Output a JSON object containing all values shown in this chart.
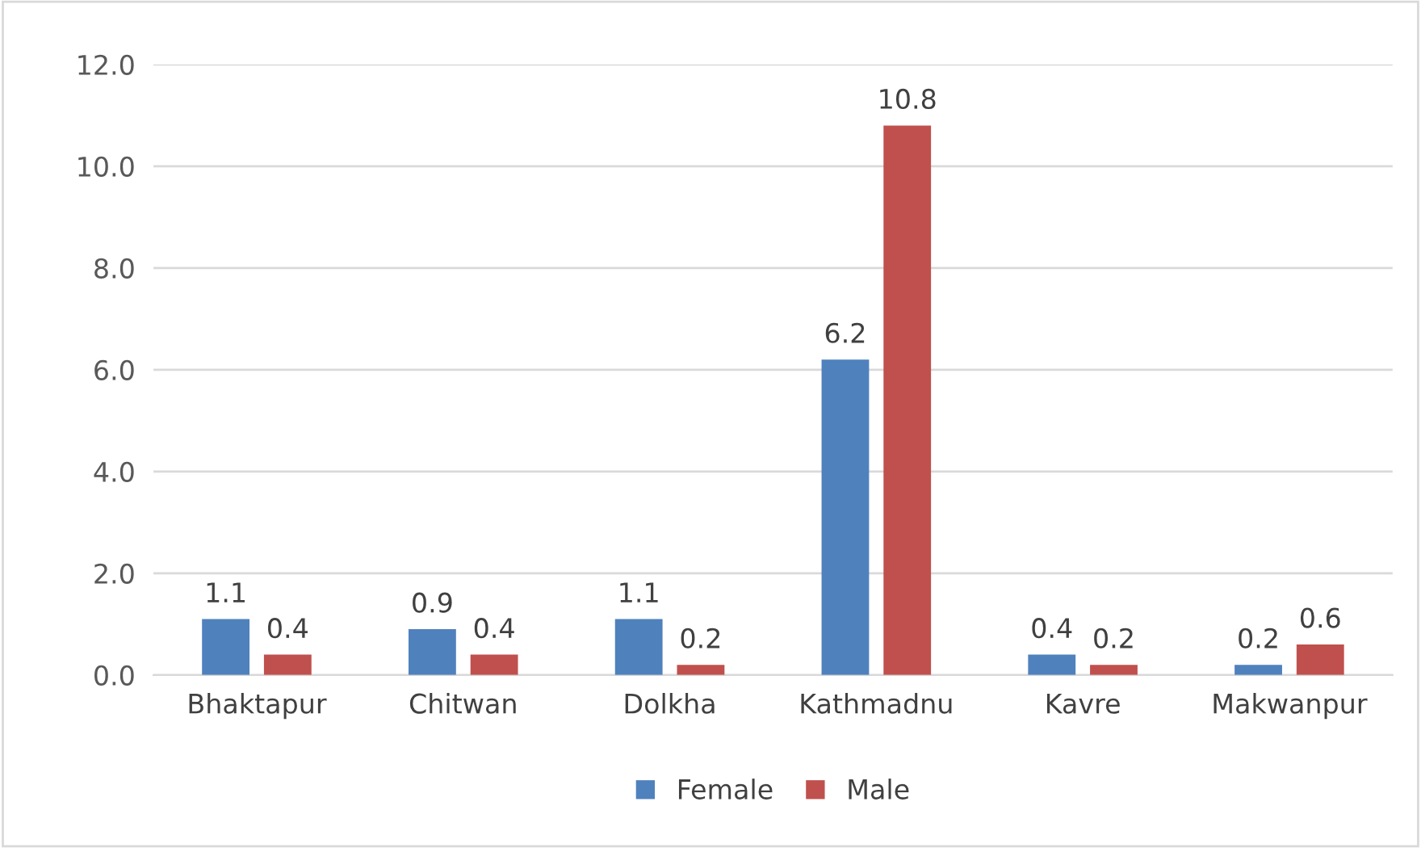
{
  "chart_data": {
    "type": "bar",
    "categories": [
      "Bhaktapur",
      "Chitwan",
      "Dolkha",
      "Kathmadnu",
      "Kavre",
      "Makwanpur"
    ],
    "series": [
      {
        "name": "Female",
        "color": "#4f81bd",
        "values": [
          1.1,
          0.9,
          1.1,
          6.2,
          0.4,
          0.2
        ]
      },
      {
        "name": "Male",
        "color": "#c0504d",
        "values": [
          0.4,
          0.4,
          0.2,
          10.8,
          0.2,
          0.6
        ]
      }
    ],
    "ylim": [
      0,
      12
    ],
    "yticks": [
      {
        "value": 0,
        "label": "0.0"
      },
      {
        "value": 2,
        "label": "2.0"
      },
      {
        "value": 4,
        "label": "4.0"
      },
      {
        "value": 6,
        "label": "6.0"
      },
      {
        "value": 8,
        "label": "8.0"
      },
      {
        "value": 10,
        "label": "10.0"
      },
      {
        "value": 12,
        "label": "12.0"
      }
    ],
    "grid": "y",
    "legend": "bottom",
    "data_labels": true
  }
}
